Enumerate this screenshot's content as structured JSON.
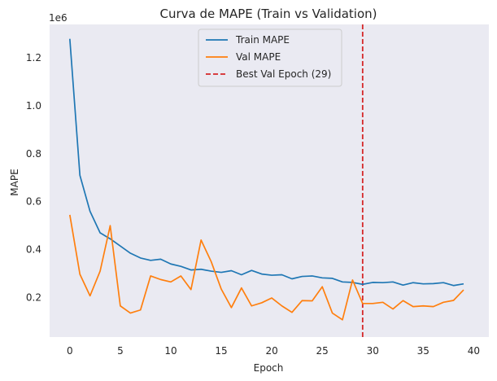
{
  "chart_data": {
    "type": "line",
    "title": "Curva de MAPE (Train vs Validation)",
    "xlabel": "Epoch",
    "ylabel": "MAPE",
    "y_offset_label": "1e6",
    "xlim": [
      -2,
      41.5
    ],
    "ylim": [
      0.035,
      1.34
    ],
    "x_ticks": [
      0,
      5,
      10,
      15,
      20,
      25,
      30,
      35,
      40
    ],
    "x_tick_labels": [
      "0",
      "5",
      "10",
      "15",
      "20",
      "25",
      "30",
      "35",
      "40"
    ],
    "y_ticks": [
      0.2,
      0.4,
      0.6,
      0.8,
      1.0,
      1.2
    ],
    "y_tick_labels": [
      "0.2",
      "0.4",
      "0.6",
      "0.8",
      "1.0",
      "1.2"
    ],
    "grid": false,
    "legend_position": "top-center",
    "x": [
      0,
      1,
      2,
      3,
      4,
      5,
      6,
      7,
      8,
      9,
      10,
      11,
      12,
      13,
      14,
      15,
      16,
      17,
      18,
      19,
      20,
      21,
      22,
      23,
      24,
      25,
      26,
      27,
      28,
      29,
      30,
      31,
      32,
      33,
      34,
      35,
      36,
      37,
      38,
      39
    ],
    "series": [
      {
        "name": "Train MAPE",
        "color": "#1f77b4",
        "style": "solid",
        "values": [
          1.28,
          0.71,
          0.56,
          0.47,
          0.445,
          0.415,
          0.385,
          0.365,
          0.355,
          0.36,
          0.34,
          0.33,
          0.315,
          0.318,
          0.31,
          0.305,
          0.312,
          0.295,
          0.313,
          0.298,
          0.293,
          0.295,
          0.278,
          0.288,
          0.29,
          0.282,
          0.28,
          0.265,
          0.263,
          0.255,
          0.263,
          0.262,
          0.265,
          0.252,
          0.262,
          0.257,
          0.258,
          0.262,
          0.25,
          0.257
        ]
      },
      {
        "name": "Val MAPE",
        "color": "#ff7f0e",
        "style": "solid",
        "values": [
          0.545,
          0.297,
          0.207,
          0.31,
          0.5,
          0.165,
          0.135,
          0.148,
          0.29,
          0.275,
          0.265,
          0.29,
          0.233,
          0.44,
          0.35,
          0.235,
          0.158,
          0.24,
          0.165,
          0.178,
          0.198,
          0.165,
          0.138,
          0.187,
          0.186,
          0.245,
          0.135,
          0.107,
          0.273,
          0.175,
          0.175,
          0.18,
          0.152,
          0.187,
          0.162,
          0.165,
          0.162,
          0.18,
          0.188,
          0.232
        ]
      }
    ],
    "reference_lines": [
      {
        "name": "Best Val Epoch (29)",
        "orientation": "vertical",
        "x": 29,
        "color": "#d62728",
        "style": "dashed"
      }
    ],
    "colors": {
      "plot_background": "#eaeaf2",
      "text": "#262626"
    }
  }
}
